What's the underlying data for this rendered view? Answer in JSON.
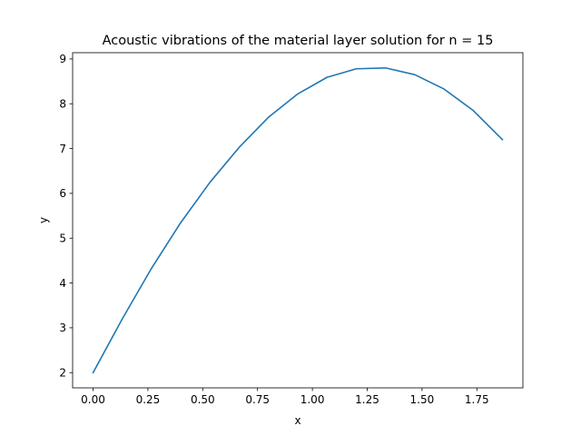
{
  "chart_data": {
    "type": "line",
    "title": "Acoustic vibrations of the material layer solution for n = 15",
    "xlabel": "x",
    "ylabel": "y",
    "xlim": [
      -0.0933,
      1.96
    ],
    "ylim": [
      1.66,
      9.14
    ],
    "xticks": [
      0.0,
      0.25,
      0.5,
      0.75,
      1.0,
      1.25,
      1.5,
      1.75
    ],
    "xtick_labels": [
      "0.00",
      "0.25",
      "0.50",
      "0.75",
      "1.00",
      "1.25",
      "1.50",
      "1.75"
    ],
    "yticks": [
      2,
      3,
      4,
      5,
      6,
      7,
      8,
      9
    ],
    "ytick_labels": [
      "2",
      "3",
      "4",
      "5",
      "6",
      "7",
      "8",
      "9"
    ],
    "grid": false,
    "line_color": "#1f77b4",
    "series": [
      {
        "x": [
          0.0,
          0.1333,
          0.2667,
          0.4,
          0.5333,
          0.6667,
          0.8,
          0.9333,
          1.0667,
          1.2,
          1.3333,
          1.4667,
          1.6,
          1.7333,
          1.8667
        ],
        "values": [
          2.0,
          3.2,
          4.33,
          5.35,
          6.25,
          7.03,
          7.7,
          8.22,
          8.59,
          8.78,
          8.8,
          8.65,
          8.33,
          7.85,
          7.2
        ]
      }
    ]
  }
}
